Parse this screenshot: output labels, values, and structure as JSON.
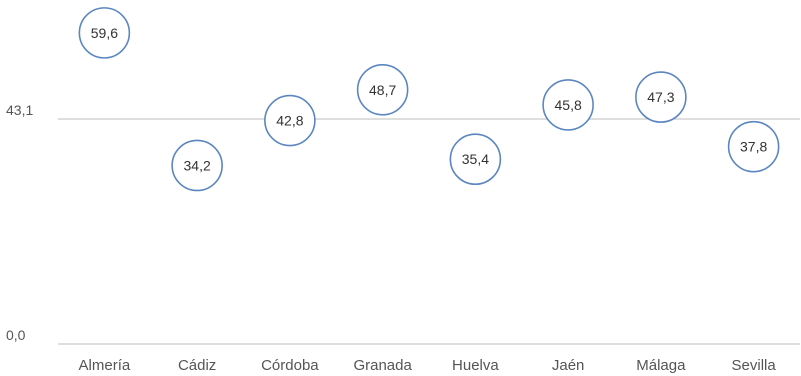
{
  "chart_data": {
    "type": "scatter",
    "categories": [
      "Almería",
      "Cádiz",
      "Córdoba",
      "Granada",
      "Huelva",
      "Jaén",
      "Málaga",
      "Sevilla"
    ],
    "values": [
      59.6,
      34.2,
      42.8,
      48.7,
      35.4,
      45.8,
      47.3,
      37.8
    ],
    "value_labels": [
      "59,6",
      "34,2",
      "42,8",
      "48,7",
      "35,4",
      "45,8",
      "47,3",
      "37,8"
    ],
    "y_ticks": [
      {
        "value": 0,
        "label": "0,0"
      },
      {
        "value": 43.1,
        "label": "43,1"
      }
    ],
    "reference_line": {
      "value": 43.1
    },
    "ylim": [
      0,
      62
    ],
    "grid": false,
    "marker": "open-circle",
    "colors": {
      "marker_stroke": "#5b86c0",
      "marker_fill": "#ffffff",
      "axis_line": "#bdbdbd",
      "text": "#555555"
    }
  }
}
